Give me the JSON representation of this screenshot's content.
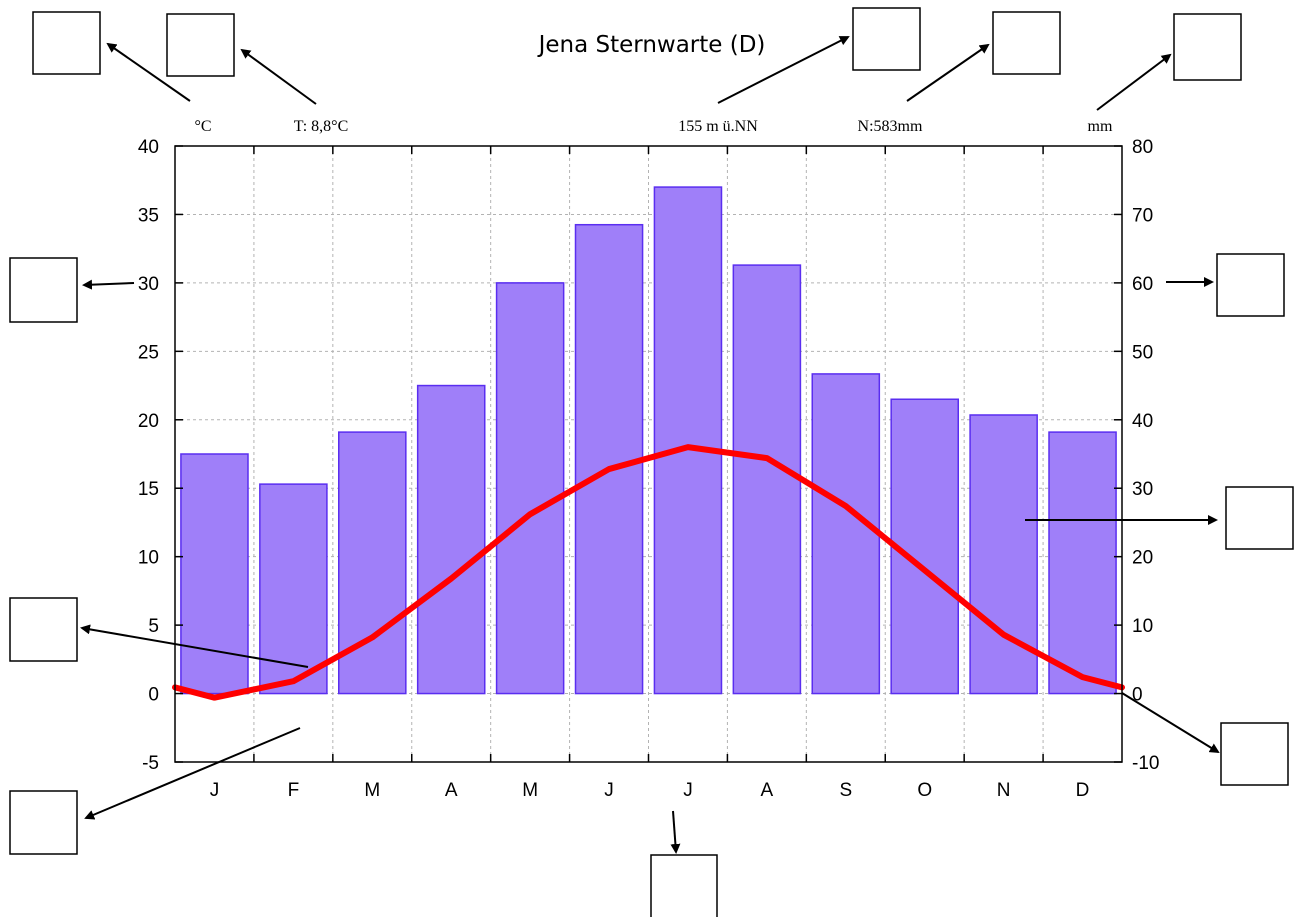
{
  "chart_data": {
    "type": "bar",
    "title": "Jena Sternwarte (D)",
    "header": {
      "left_unit": "°C",
      "temperature": "T: 8,8°C",
      "elevation": "155 m ü.NN",
      "precipitation": "N:583mm",
      "right_unit": "mm"
    },
    "categories": [
      "J",
      "F",
      "M",
      "A",
      "M",
      "J",
      "J",
      "A",
      "S",
      "O",
      "N",
      "D"
    ],
    "series": [
      {
        "type": "bar",
        "axis": "right",
        "values": [
          35,
          30.6,
          38.2,
          45,
          60,
          68.5,
          74,
          62.6,
          46.7,
          43,
          40.7,
          38.2
        ]
      },
      {
        "type": "line",
        "axis": "left",
        "values": [
          -0.3,
          0.9,
          4.1,
          8.4,
          13.1,
          16.4,
          18,
          17.2,
          13.7,
          9,
          4.3,
          1.2
        ]
      }
    ],
    "left_axis": {
      "ylim": [
        -5,
        40
      ],
      "ticks": [
        "-5",
        "0",
        "5",
        "10",
        "15",
        "20",
        "25",
        "30",
        "35",
        "40"
      ]
    },
    "right_axis": {
      "ylim": [
        -10,
        80
      ],
      "ticks": [
        "-10",
        "0",
        "10",
        "20",
        "30",
        "40",
        "50",
        "60",
        "70",
        "80"
      ]
    },
    "grid": true
  },
  "colors": {
    "bar_fill": "#9f7ff9",
    "bar_stroke": "#5a2ef0",
    "line": "#ff0000"
  }
}
